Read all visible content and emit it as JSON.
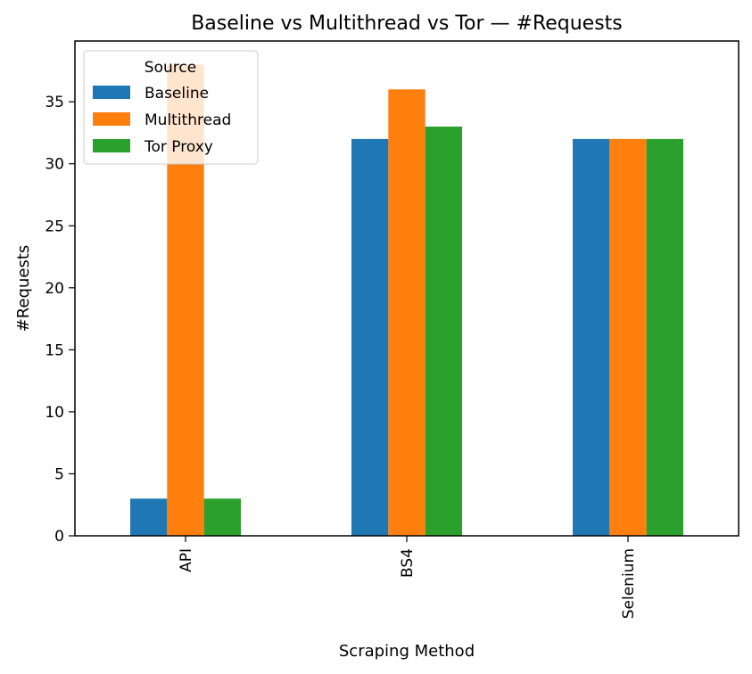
{
  "chart_data": {
    "type": "bar",
    "title": "Baseline vs Multithread vs Tor — #Requests",
    "xlabel": "Scraping Method",
    "ylabel": "#Requests",
    "categories": [
      "API",
      "BS4",
      "Selenium"
    ],
    "series": [
      {
        "name": "Baseline",
        "values": [
          3,
          32,
          32
        ],
        "color": "#1f77b4"
      },
      {
        "name": "Multithread",
        "values": [
          38,
          36,
          32
        ],
        "color": "#ff7f0e"
      },
      {
        "name": "Tor Proxy",
        "values": [
          3,
          33,
          32
        ],
        "color": "#2ca02c"
      }
    ],
    "ylim": [
      0,
      39.9
    ],
    "yticks": [
      0,
      5,
      10,
      15,
      20,
      25,
      30,
      35
    ],
    "legend": {
      "title": "Source",
      "placement": "top-left"
    },
    "grid": false
  }
}
